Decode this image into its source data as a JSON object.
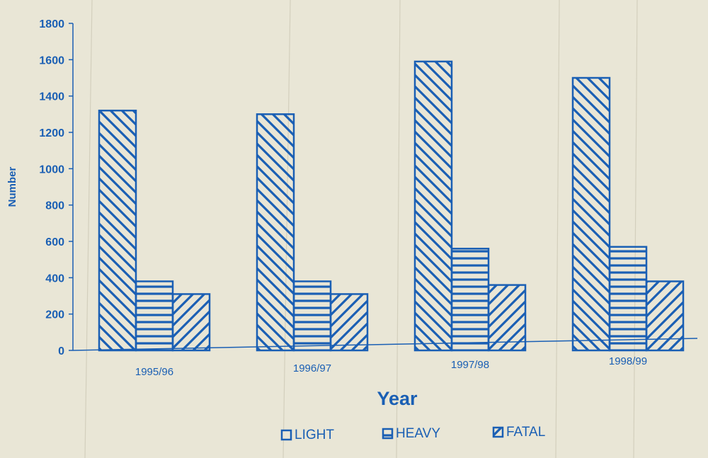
{
  "chart_data": {
    "type": "bar",
    "title": "",
    "xlabel": "Year",
    "ylabel": "Number",
    "ylim": [
      0,
      1800
    ],
    "yticks": [
      0,
      200,
      400,
      600,
      800,
      1000,
      1200,
      1400,
      1600,
      1800
    ],
    "categories": [
      "1995/96",
      "1996/97",
      "1997/98",
      "1998/99"
    ],
    "series": [
      {
        "name": "LIGHT",
        "values": [
          1320,
          1300,
          1590,
          1500
        ],
        "pattern": "diagonal-down"
      },
      {
        "name": "HEAVY",
        "values": [
          380,
          380,
          560,
          570
        ],
        "pattern": "horizontal"
      },
      {
        "name": "FATAL",
        "values": [
          310,
          310,
          360,
          380
        ],
        "pattern": "diagonal-up"
      }
    ],
    "grid": false,
    "legend_position": "bottom",
    "colors": {
      "ink": "#1a5fb4",
      "paper": "#e9e6d6"
    }
  }
}
